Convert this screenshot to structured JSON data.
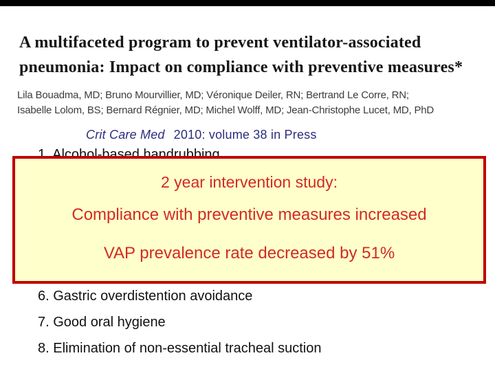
{
  "slide": {
    "paper": {
      "title_line1": "A multifaceted program to prevent ventilator-associated",
      "title_line2": "pneumonia: Impact on compliance with preventive measures*",
      "authors_line1": "Lila Bouadma, MD; Bruno Mourvillier, MD; Véronique Deiler, RN; Bertrand Le Corre, RN;",
      "authors_line2": "Isabelle Lolom, BS; Bernard Régnier, MD; Michel Wolff, MD; Jean-Christophe Lucet, MD, PhD",
      "journal_name": "Crit Care Med",
      "journal_citation": "2010: volume 38 in Press"
    },
    "highlight_box": {
      "line1": "2 year intervention study:",
      "line2": "Compliance with preventive measures increased",
      "line3": "VAP prevalence rate decreased by 51%"
    },
    "list": {
      "hidden_item": "1. Alcohol-based handrubbing",
      "items": [
        "6. Gastric overdistention avoidance",
        "7. Good oral hygiene",
        "8. Elimination of non-essential tracheal suction"
      ]
    },
    "colors": {
      "top_bar": "#000000",
      "journal_text": "#2b2e7d",
      "box_border": "#c00000",
      "box_fill": "#ffffcc",
      "box_text": "#d22b20",
      "body_text": "#111111"
    }
  }
}
